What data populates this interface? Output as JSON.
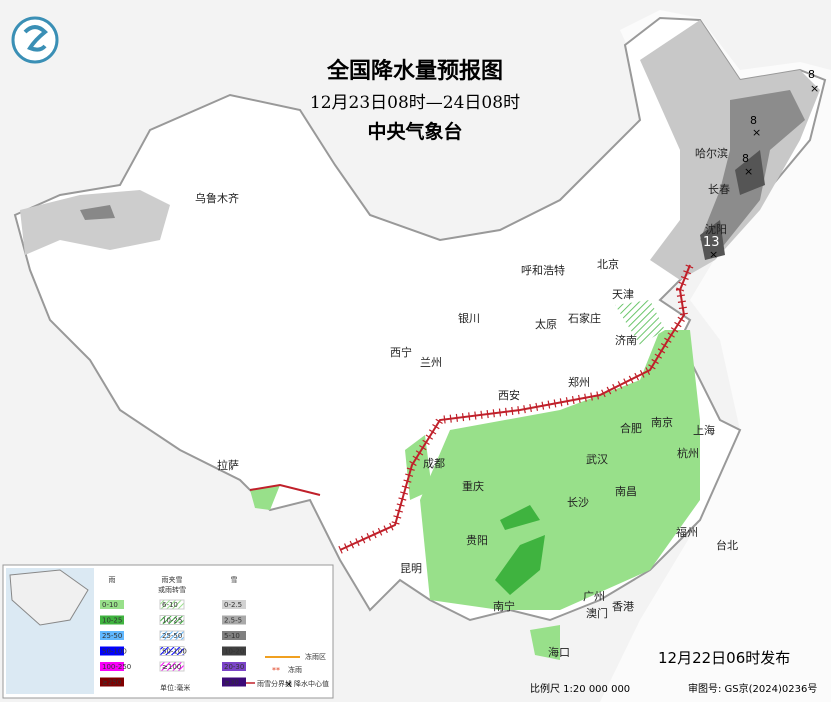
{
  "header": {
    "title": "全国降水量预报图",
    "subtitle": "12月23日08时—24日08时",
    "issuer": "中央气象台"
  },
  "cities": [
    "乌鲁木齐",
    "哈尔滨",
    "长春",
    "沈阳",
    "北京",
    "天津",
    "呼和浩特",
    "石家庄",
    "太原",
    "济南",
    "银川",
    "西宁",
    "兰州",
    "西安",
    "郑州",
    "合肥",
    "南京",
    "上海",
    "杭州",
    "武汉",
    "成都",
    "重庆",
    "长沙",
    "南昌",
    "拉萨",
    "贵阳",
    "福州",
    "台北",
    "昆明",
    "南宁",
    "广州",
    "澳门",
    "香港",
    "海口"
  ],
  "snow_centers": [
    "8",
    "8",
    "8",
    "13"
  ],
  "legend": {
    "rain": {
      "title": "雨",
      "items": [
        {
          "label": "0-10",
          "color": "#98e08a"
        },
        {
          "label": "10-25",
          "color": "#3fb33f"
        },
        {
          "label": "25-50",
          "color": "#61b8ff"
        },
        {
          "label": "50-100",
          "color": "#0000fe"
        },
        {
          "label": "100-250",
          "color": "#fa00fa"
        },
        {
          "label": "≥250",
          "color": "#800000"
        }
      ]
    },
    "sleet": {
      "title": "雨夹雪\n或雨转雪",
      "items": [
        {
          "label": "6-10",
          "color": "#98e08a"
        },
        {
          "label": "10-25",
          "color": "#3fb33f"
        },
        {
          "label": "25-50",
          "color": "#61b8ff"
        },
        {
          "label": "50-100",
          "color": "#0000fe"
        },
        {
          "label": "≥100",
          "color": "#fa00fa"
        }
      ]
    },
    "snow": {
      "title": "雪",
      "items": [
        {
          "label": "0-2.5",
          "color": "#d2d2d2"
        },
        {
          "label": "2.5-5",
          "color": "#a9a9a9"
        },
        {
          "label": "5-10",
          "color": "#808080"
        },
        {
          "label": "10-20",
          "color": "#404040"
        },
        {
          "label": "20-30",
          "color": "#7b44c8"
        },
        {
          "label": "≥30",
          "color": "#3c0a78"
        }
      ]
    },
    "unit": "单位:毫米",
    "freezing_rain": "冻雨区",
    "ice_pellets": "冻雨",
    "rain_snow_line": "雨雪分界线",
    "center_value": "降水中心值"
  },
  "footer": {
    "issued": "12月22日06时发布",
    "scale": "比例尺 1:20 000 000",
    "approval": "审图号: GS京(2024)0236号"
  }
}
